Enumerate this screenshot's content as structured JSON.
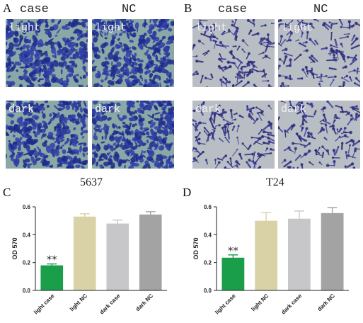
{
  "panels": {
    "A": {
      "letter": "A",
      "col_labels": [
        "case",
        "NC"
      ],
      "row_labels": [
        "light",
        "dark"
      ],
      "palette": {
        "bg": "#8aa8a6",
        "cell": "#2f3fa8",
        "dense": "#1e2a8c"
      }
    },
    "B": {
      "letter": "B",
      "col_labels": [
        "case",
        "NC"
      ],
      "row_labels": [
        "light",
        "dark"
      ],
      "palette": {
        "bg": "#b9bdc4",
        "cell": "#3d3f9a",
        "dense": "#2a2c7a"
      }
    }
  },
  "charts": [
    {
      "letter": "C",
      "title": "5637",
      "chart_data": {
        "type": "bar",
        "categories": [
          "light case",
          "light NC",
          "dark case",
          "dark NC"
        ],
        "values": [
          0.18,
          0.53,
          0.48,
          0.545
        ],
        "errors": [
          0.01,
          0.02,
          0.025,
          0.02
        ],
        "colors": [
          "#1a9e4a",
          "#d9d2a6",
          "#c7c7c9",
          "#a3a3a3"
        ],
        "ylabel": "OD 570",
        "ylim": [
          0,
          0.6
        ],
        "yticks": [
          "0.0",
          "0.2",
          "0.4",
          "0.6"
        ],
        "annotations": [
          {
            "category": "light case",
            "text": "**"
          }
        ]
      }
    },
    {
      "letter": "D",
      "title": "T24",
      "chart_data": {
        "type": "bar",
        "categories": [
          "light case",
          "light NC",
          "dark case",
          "dark NC"
        ],
        "values": [
          0.235,
          0.5,
          0.515,
          0.555
        ],
        "errors": [
          0.02,
          0.06,
          0.055,
          0.04
        ],
        "colors": [
          "#1a9e4a",
          "#d9d2a6",
          "#c7c7c9",
          "#a3a3a3"
        ],
        "ylabel": "OD 570",
        "ylim": [
          0,
          0.6
        ],
        "yticks": [
          "0.0",
          "0.2",
          "0.4",
          "0.6"
        ],
        "annotations": [
          {
            "category": "light case",
            "text": "**"
          }
        ]
      }
    }
  ]
}
